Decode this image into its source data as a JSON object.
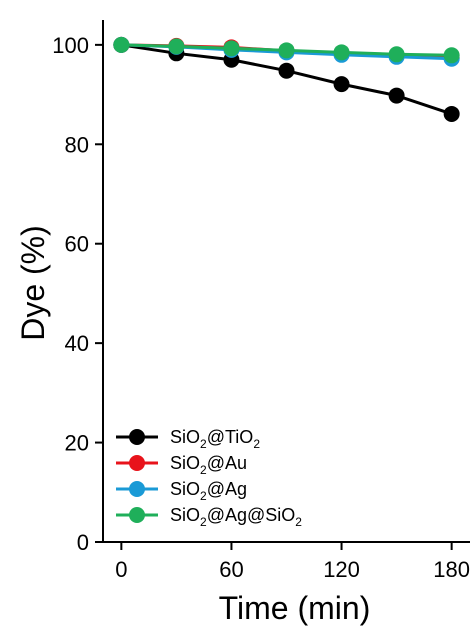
{
  "chart_data": {
    "type": "line",
    "xlabel": "Time (min)",
    "ylabel": "Dye (%)",
    "xlim": [
      -10,
      190
    ],
    "ylim": [
      0,
      105
    ],
    "xticks": [
      0,
      60,
      120,
      180
    ],
    "yticks": [
      0,
      20,
      40,
      60,
      80,
      100
    ],
    "x": [
      0,
      30,
      60,
      90,
      120,
      150,
      180
    ],
    "grid": false,
    "legend_position": "bottom-left",
    "series": [
      {
        "name": "SiO2@TiO2",
        "legend_parts": [
          "SiO",
          "2",
          "@TiO",
          "2"
        ],
        "color": "#000000",
        "values": [
          100,
          98.3,
          97.0,
          94.8,
          92.1,
          89.8,
          86.1
        ]
      },
      {
        "name": "SiO2@Au",
        "legend_parts": [
          "SiO",
          "2",
          "@Au",
          ""
        ],
        "color": "#e8131b",
        "values": [
          100,
          99.8,
          99.5,
          98.8,
          98.2,
          97.9,
          97.4
        ]
      },
      {
        "name": "SiO2@Ag",
        "legend_parts": [
          "SiO",
          "2",
          "@Ag",
          ""
        ],
        "color": "#1a9ad6",
        "values": [
          100,
          99.6,
          99.0,
          98.5,
          98.0,
          97.6,
          97.2
        ]
      },
      {
        "name": "SiO2@Ag@SiO2",
        "legend_parts": [
          "SiO",
          "2",
          "@Ag@SiO",
          "2"
        ],
        "color": "#1faf5a",
        "values": [
          100,
          99.7,
          99.3,
          98.9,
          98.5,
          98.1,
          97.9
        ]
      }
    ]
  }
}
